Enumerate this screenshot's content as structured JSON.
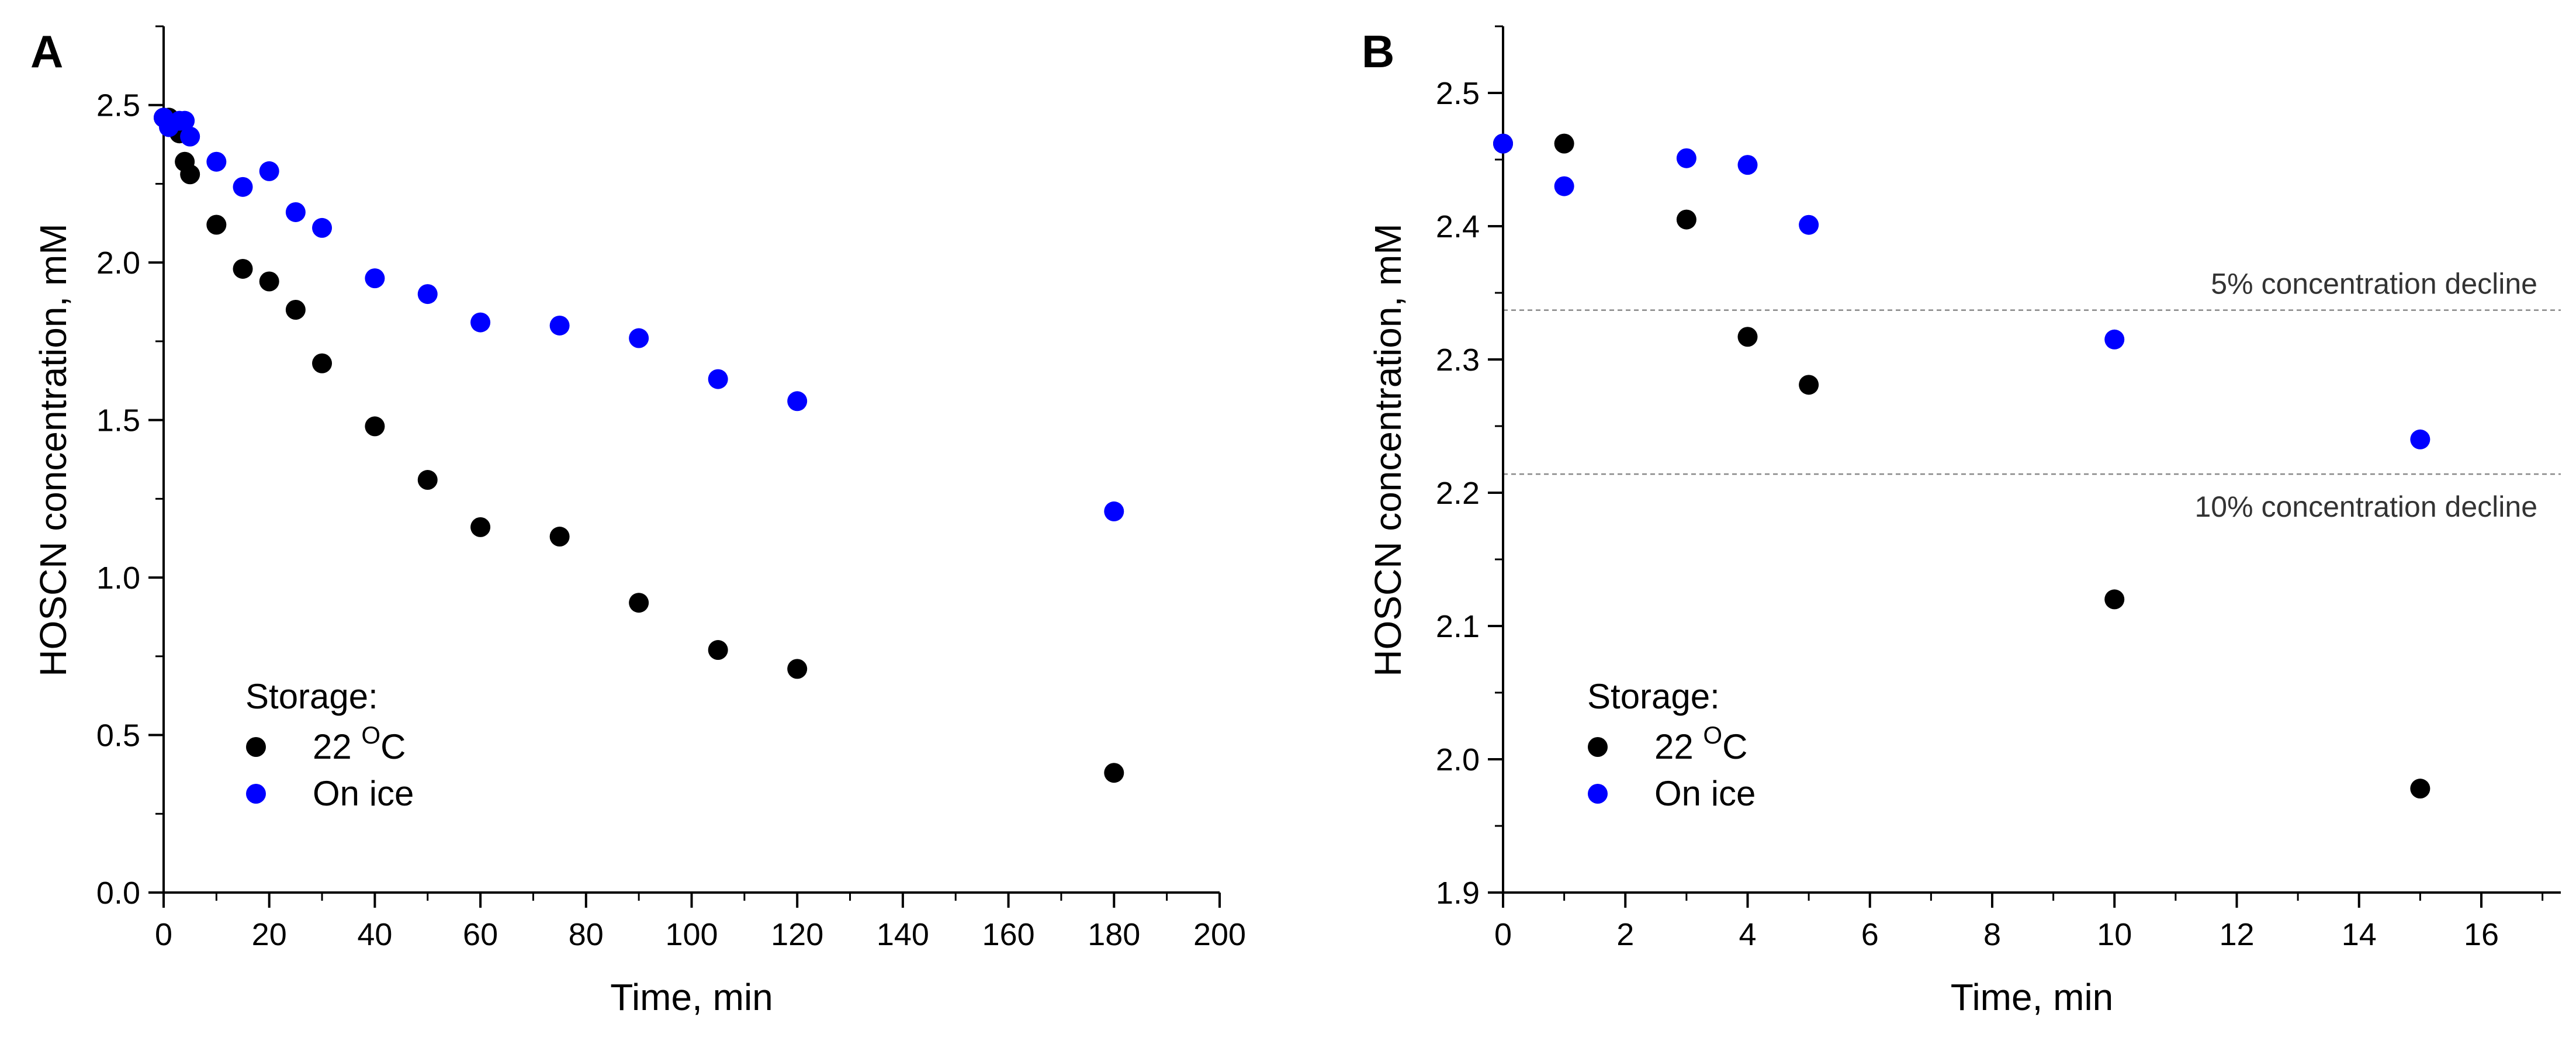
{
  "chart_data": [
    {
      "id": "A",
      "panel_label": "A",
      "type": "scatter",
      "xlabel": "Time, min",
      "ylabel": "HOSCN concentration, mM",
      "xlim": [
        0,
        200
      ],
      "ylim": [
        0,
        2.75
      ],
      "xticks": [
        0,
        20,
        40,
        60,
        80,
        100,
        120,
        140,
        160,
        180,
        200
      ],
      "yticks": [
        0.0,
        0.5,
        1.0,
        1.5,
        2.0,
        2.5
      ],
      "legend": {
        "title": "Storage:",
        "position": "bottom-left",
        "entries": [
          {
            "label_main": "22 ",
            "label_sup": "O",
            "label_end": "C",
            "color": "#000000"
          },
          {
            "label_main": "On ice",
            "label_sup": "",
            "label_end": "",
            "color": "#0000ff"
          }
        ]
      },
      "series": [
        {
          "name": "22 °C",
          "color": "#000000",
          "x": [
            0,
            1,
            3,
            4,
            5,
            10,
            15,
            20,
            25,
            30,
            40,
            50,
            60,
            75,
            90,
            105,
            120,
            180
          ],
          "y": [
            2.46,
            2.46,
            2.41,
            2.32,
            2.28,
            2.12,
            1.98,
            1.94,
            1.85,
            1.68,
            1.48,
            1.31,
            1.16,
            1.13,
            0.92,
            0.77,
            0.71,
            0.38
          ]
        },
        {
          "name": "On ice",
          "color": "#0000ff",
          "x": [
            0,
            1,
            3,
            4,
            5,
            10,
            15,
            20,
            25,
            30,
            40,
            50,
            60,
            75,
            90,
            105,
            120,
            180
          ],
          "y": [
            2.46,
            2.43,
            2.45,
            2.45,
            2.4,
            2.32,
            2.24,
            2.29,
            2.16,
            2.11,
            1.95,
            1.9,
            1.81,
            1.8,
            1.76,
            1.63,
            1.56,
            1.21
          ]
        }
      ],
      "reference_lines": []
    },
    {
      "id": "B",
      "panel_label": "B",
      "type": "scatter",
      "xlabel": "Time, min",
      "ylabel": "HOSCN concentration, mM",
      "xlim": [
        0,
        17.3
      ],
      "ylim": [
        1.9,
        2.55
      ],
      "xticks": [
        0,
        2,
        4,
        6,
        8,
        10,
        12,
        14,
        16
      ],
      "yticks": [
        1.9,
        2.0,
        2.1,
        2.2,
        2.3,
        2.4,
        2.5
      ],
      "legend": {
        "title": "Storage:",
        "position": "bottom-left",
        "entries": [
          {
            "label_main": "22 ",
            "label_sup": "O",
            "label_end": "C",
            "color": "#000000"
          },
          {
            "label_main": "On ice",
            "label_sup": "",
            "label_end": "",
            "color": "#0000ff"
          }
        ]
      },
      "series": [
        {
          "name": "22 °C",
          "color": "#000000",
          "x": [
            0,
            1,
            3,
            4,
            5,
            10,
            15
          ],
          "y": [
            2.462,
            2.462,
            2.405,
            2.317,
            2.281,
            2.12,
            1.978
          ]
        },
        {
          "name": "On ice",
          "color": "#0000ff",
          "x": [
            0,
            1,
            3,
            4,
            5,
            10,
            15
          ],
          "y": [
            2.462,
            2.43,
            2.451,
            2.446,
            2.401,
            2.315,
            2.24
          ]
        }
      ],
      "reference_lines": [
        {
          "y": 2.337,
          "label": "5% concentration decline"
        },
        {
          "y": 2.214,
          "label": "10% concentration decline"
        }
      ]
    }
  ]
}
